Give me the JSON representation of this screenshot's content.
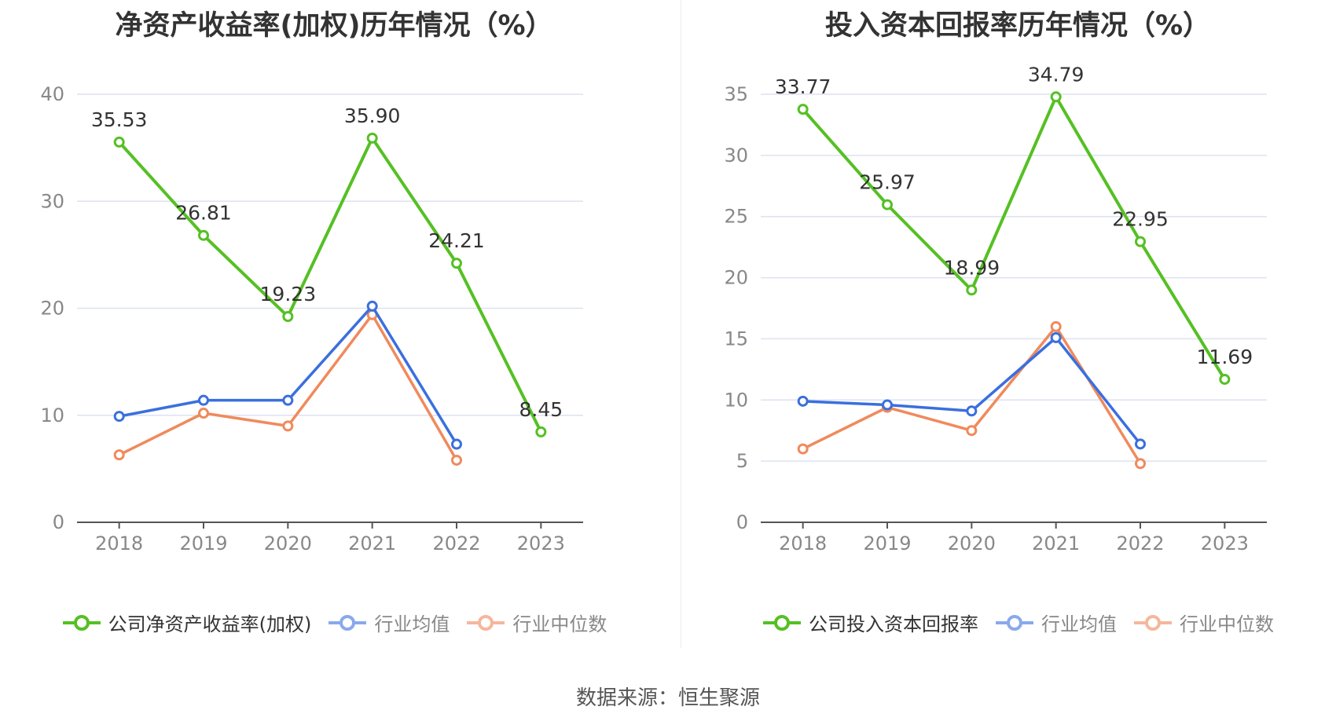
{
  "source": "数据来源：恒生聚源",
  "colors": {
    "company": "#55c023",
    "average": "#3a6fde",
    "median": "#f08a5c",
    "grid": "#dde2f0",
    "axis": "#555555",
    "tick": "#888888",
    "label": "#333333"
  },
  "chart_data": [
    {
      "type": "line",
      "title": "净资产收益率(加权)历年情况（%）",
      "categories": [
        "2018",
        "2019",
        "2020",
        "2021",
        "2022",
        "2023"
      ],
      "ylim": [
        0,
        40
      ],
      "yticks": [
        "0",
        "10",
        "20",
        "30",
        "40"
      ],
      "grid": true,
      "legend_position": "bottom-center",
      "series": [
        {
          "name": "公司净资产收益率(加权)",
          "role": "company",
          "values": [
            35.53,
            26.81,
            19.23,
            35.9,
            24.21,
            8.45
          ],
          "labels": [
            "35.53",
            "26.81",
            "19.23",
            "35.90",
            "24.21",
            "8.45"
          ]
        },
        {
          "name": "行业均值",
          "role": "average",
          "values": [
            9.9,
            11.4,
            11.4,
            20.2,
            7.3,
            null
          ]
        },
        {
          "name": "行业中位数",
          "role": "median",
          "values": [
            6.3,
            10.2,
            9.0,
            19.4,
            5.8,
            null
          ]
        }
      ]
    },
    {
      "type": "line",
      "title": "投入资本回报率历年情况（%）",
      "categories": [
        "2018",
        "2019",
        "2020",
        "2021",
        "2022",
        "2023"
      ],
      "ylim": [
        0,
        35
      ],
      "yticks": [
        "0",
        "5",
        "10",
        "15",
        "20",
        "25",
        "30",
        "35"
      ],
      "grid": true,
      "legend_position": "bottom-center",
      "series": [
        {
          "name": "公司投入资本回报率",
          "role": "company",
          "values": [
            33.77,
            25.97,
            18.99,
            34.79,
            22.95,
            11.69
          ],
          "labels": [
            "33.77",
            "25.97",
            "18.99",
            "34.79",
            "22.95",
            "11.69"
          ]
        },
        {
          "name": "行业均值",
          "role": "average",
          "values": [
            9.9,
            9.6,
            9.1,
            15.1,
            6.4,
            null
          ]
        },
        {
          "name": "行业中位数",
          "role": "median",
          "values": [
            6.0,
            9.4,
            7.5,
            16.0,
            4.8,
            null
          ]
        }
      ]
    }
  ]
}
